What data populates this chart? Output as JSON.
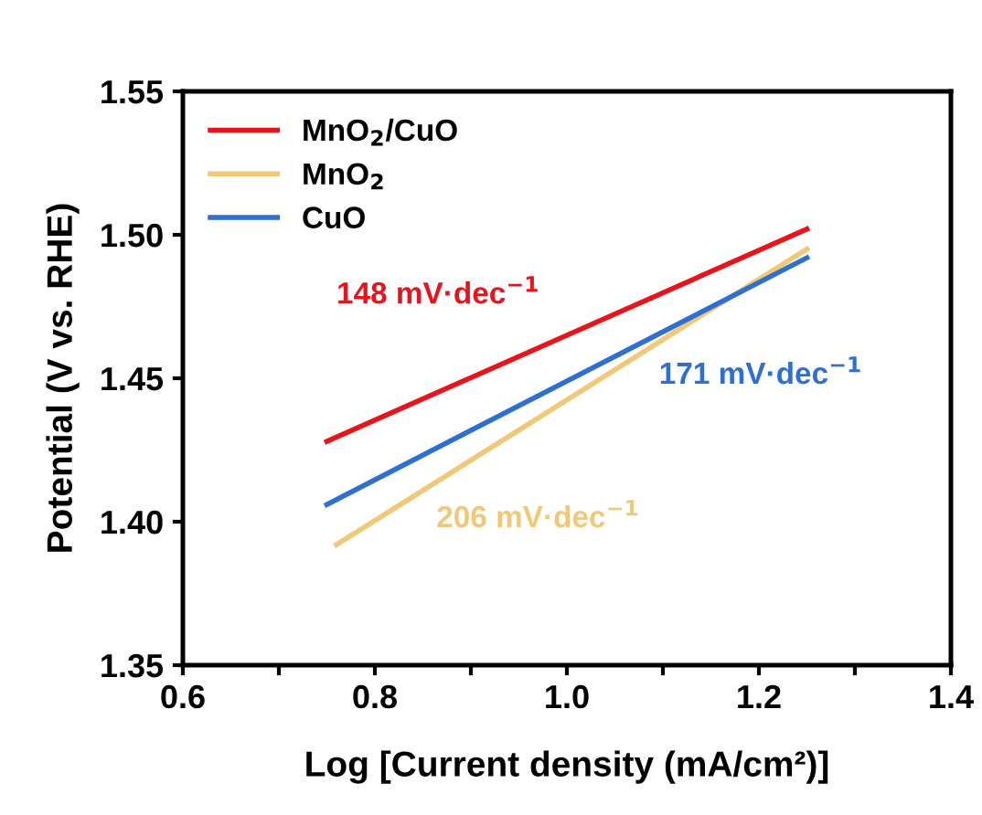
{
  "chart_data": {
    "type": "line",
    "xlabel": "Log [Current density (mA/cm²)]",
    "ylabel": "Potential (V vs. RHE)",
    "series": [
      {
        "name": "MnO$_{2}$/CuO",
        "color": "#e8141c",
        "x": [
          0.75,
          1.25
        ],
        "values": [
          1.428,
          1.502
        ]
      },
      {
        "name": "MnO$_{2}$",
        "color": "#f0c878",
        "x": [
          0.76,
          1.25
        ],
        "values": [
          1.392,
          1.495
        ]
      },
      {
        "name": "CuO",
        "color": "#2e6fd0",
        "x": [
          0.75,
          1.25
        ],
        "values": [
          1.406,
          1.492
        ]
      }
    ],
    "annotations": [
      "148 mV·dec$^{−1}$",
      "206 mV·dec$^{−1}$",
      "171 mV·dec$^{−1}$"
    ],
    "xlim": [
      0.6,
      1.4
    ],
    "ylim": [
      1.35,
      1.55
    ],
    "xticks": [
      0.6,
      {
        "value": 0.7,
        "label": null
      },
      0.8,
      {
        "value": 0.9,
        "label": null
      },
      {
        "value": 1.0,
        "label": "1.0"
      },
      {
        "value": 1.1,
        "label": null
      },
      1.2,
      {
        "value": 1.3,
        "label": null
      },
      1.4
    ],
    "yticks": [
      1.35,
      {
        "value": 1.4,
        "label": "1.40"
      },
      1.45,
      {
        "value": 1.5,
        "label": "1.50"
      },
      1.55
    ],
    "legend": "top left",
    "grid": false,
    "marker": "none",
    "line_style": "solid"
  }
}
